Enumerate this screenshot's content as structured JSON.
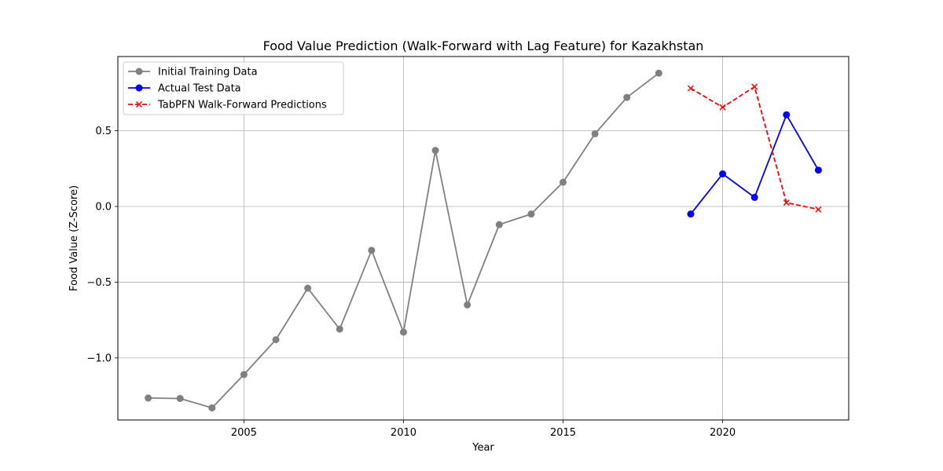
{
  "chart_data": {
    "type": "line",
    "title": "Food Value Prediction (Walk-Forward with Lag Feature) for Kazakhstan",
    "xlabel": "Year",
    "ylabel": "Food Value (Z-Score)",
    "xlim": [
      2001.05,
      2023.95
    ],
    "ylim": [
      -1.41,
      0.99
    ],
    "xticks": [
      2005,
      2010,
      2015,
      2020
    ],
    "yticks": [
      -1.0,
      -0.5,
      0.0,
      0.5
    ],
    "ytick_labels": [
      "−1.0",
      "−0.5",
      "0.0",
      "0.5"
    ],
    "grid": true,
    "legend_position": "top-left",
    "series": [
      {
        "name": "Initial Training Data",
        "color": "#808080",
        "linestyle": "solid",
        "marker": "circle",
        "x": [
          2002,
          2003,
          2004,
          2005,
          2006,
          2007,
          2008,
          2009,
          2010,
          2011,
          2012,
          2013,
          2014,
          2015,
          2016,
          2017,
          2018
        ],
        "y": [
          -1.265,
          -1.268,
          -1.33,
          -1.11,
          -0.88,
          -0.54,
          -0.81,
          -0.29,
          -0.83,
          0.37,
          -0.65,
          -0.12,
          -0.05,
          0.16,
          0.48,
          0.72,
          0.88
        ]
      },
      {
        "name": "Actual Test Data",
        "color": "#0000ff",
        "linestyle": "solid",
        "marker": "circle",
        "x": [
          2019,
          2020,
          2021,
          2022,
          2023
        ],
        "y": [
          -0.05,
          0.215,
          0.06,
          0.605,
          0.24
        ]
      },
      {
        "name": "TabPFN Walk-Forward Predictions",
        "color": "#ff0000",
        "linestyle": "dashed",
        "marker": "x",
        "x": [
          2019,
          2020,
          2021,
          2022,
          2023
        ],
        "y": [
          0.78,
          0.655,
          0.79,
          0.025,
          -0.02
        ]
      }
    ]
  }
}
